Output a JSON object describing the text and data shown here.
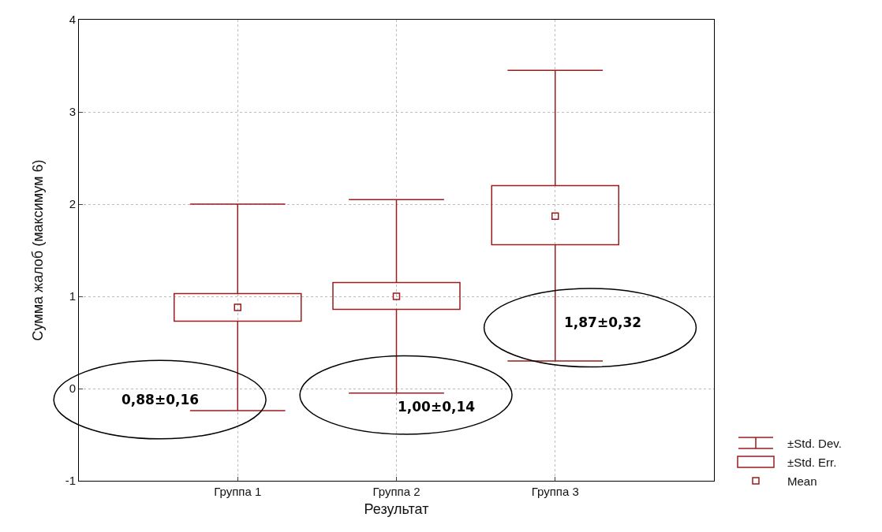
{
  "chart_data": {
    "type": "box",
    "xlabel": "Результат",
    "ylabel": "Сумма жалоб (максимум 6)",
    "categories": [
      "Группа 1",
      "Группа 2",
      "Группа 3"
    ],
    "color": "#9b1c1c",
    "boxes": [
      {
        "low": -0.24,
        "q1": 0.73,
        "q3": 1.03,
        "high": 2.0,
        "mean": 0.88
      },
      {
        "low": -0.05,
        "q1": 0.86,
        "q3": 1.15,
        "high": 2.05,
        "mean": 1.0
      },
      {
        "low": 0.3,
        "q1": 1.56,
        "q3": 2.2,
        "high": 3.45,
        "mean": 1.87
      }
    ],
    "ylim": [
      -1,
      4
    ],
    "yticks": [
      -1,
      0,
      1,
      2,
      3,
      4
    ],
    "grid": true,
    "marker": "square",
    "annotations": [
      "0,88±0,16",
      "1,00±0,14",
      "1,87±0,32",
      "±Std. Dev.",
      "±Std. Err.",
      "Mean"
    ]
  }
}
